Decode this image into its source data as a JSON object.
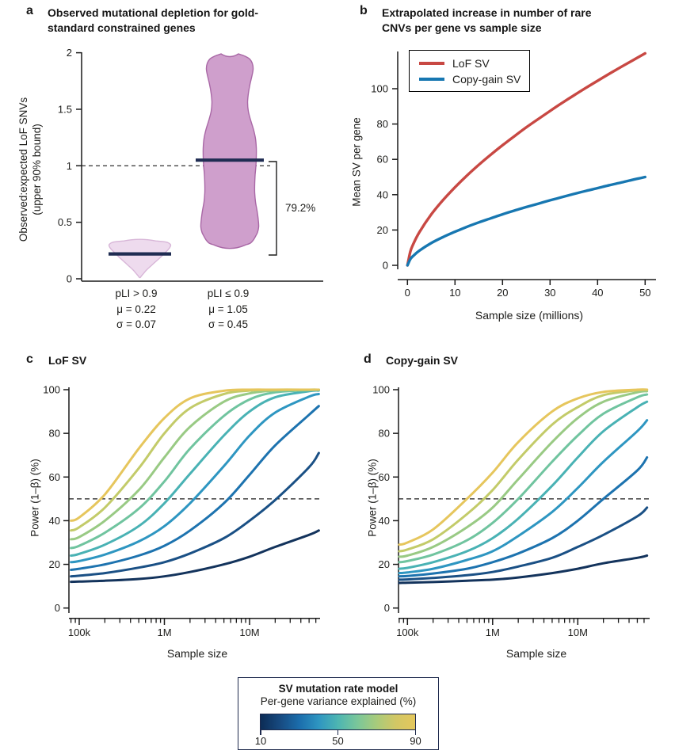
{
  "chart_data": [
    {
      "panel_letter": "a",
      "type": "violin",
      "title": "Observed mutational depletion for gold-standard constrained genes",
      "title_lines": [
        "Observed mutational depletion for gold-",
        "standard constrained genes"
      ],
      "ylabel_lines": [
        "Observed:expected LoF SNVs",
        "(upper 90% bound)"
      ],
      "ylim": [
        0,
        2
      ],
      "y_ticks": [
        "0",
        "0.5",
        "1",
        "1.5",
        "2"
      ],
      "y_tick_values": [
        0,
        0.5,
        1,
        1.5,
        2
      ],
      "reference_line_y": 1,
      "annotation": "79.2%",
      "median_color": "#1f2c52",
      "groups": [
        {
          "label": "pLI > 0.9",
          "mu_label": "μ = 0.22",
          "sigma_label": "σ = 0.07",
          "median": 0.22,
          "fill": "#eedbee",
          "stroke": "#d8b6d8",
          "median_half_len": 39.5,
          "profile": [
            [
              0.335,
              20
            ],
            [
              0.325,
              33
            ],
            [
              0.305,
              38.5
            ],
            [
              0.285,
              38.5
            ],
            [
              0.26,
              36
            ],
            [
              0.225,
              31
            ],
            [
              0.19,
              26
            ],
            [
              0.155,
              20.5
            ],
            [
              0.12,
              15
            ],
            [
              0.085,
              9.5
            ],
            [
              0.05,
              5
            ],
            [
              0.02,
              1.5
            ]
          ]
        },
        {
          "label": "pLI ≤ 0.9",
          "mu_label": "μ = 1.05",
          "sigma_label": "σ = 0.45",
          "median": 1.05,
          "fill": "#cf9fcc",
          "stroke": "#a968a6",
          "median_half_len": 43,
          "profile": [
            [
              1.99,
              11
            ],
            [
              1.97,
              19
            ],
            [
              1.945,
              25
            ],
            [
              1.905,
              28.5
            ],
            [
              1.855,
              29.5
            ],
            [
              1.795,
              28
            ],
            [
              1.72,
              25.5
            ],
            [
              1.64,
              23.5
            ],
            [
              1.56,
              22.5
            ],
            [
              1.48,
              23.5
            ],
            [
              1.4,
              26.5
            ],
            [
              1.32,
              30
            ],
            [
              1.24,
              32.5
            ],
            [
              1.16,
              33.5
            ],
            [
              1.08,
              33.5
            ],
            [
              1.0,
              33
            ],
            [
              0.92,
              32
            ],
            [
              0.84,
              31.5
            ],
            [
              0.76,
              31.5
            ],
            [
              0.68,
              32.5
            ],
            [
              0.6,
              34.5
            ],
            [
              0.52,
              36
            ],
            [
              0.46,
              36.5
            ],
            [
              0.41,
              35
            ],
            [
              0.375,
              32.5
            ],
            [
              0.345,
              30
            ],
            [
              0.315,
              26
            ],
            [
              0.3,
              20
            ]
          ]
        }
      ]
    },
    {
      "panel_letter": "b",
      "type": "line",
      "title": "Extrapolated increase in number of rare CNVs per gene vs sample size",
      "title_lines": [
        "Extrapolated increase in number of rare",
        "CNVs per gene vs sample size"
      ],
      "xlabel": "Sample size (millions)",
      "ylabel": "Mean SV per gene",
      "x_ticks": [
        0,
        10,
        20,
        30,
        40,
        50
      ],
      "y_ticks": [
        0,
        20,
        40,
        60,
        80,
        100
      ],
      "xlim": [
        0,
        52
      ],
      "ylim": [
        0,
        120
      ],
      "legend_position": "upper left",
      "x": [
        0,
        0.6,
        1.2,
        2.5,
        5,
        7.5,
        10,
        12.5,
        15,
        17.5,
        20,
        22.5,
        25,
        27.5,
        30,
        32.5,
        35,
        37.5,
        40,
        42.5,
        45,
        47.5,
        50
      ],
      "series": [
        {
          "name": "LoF SV",
          "color": "#c84843",
          "values": [
            0,
            7.7,
            11.9,
            18.7,
            28.8,
            37.0,
            44.2,
            50.8,
            56.9,
            62.6,
            68.0,
            73.1,
            78.1,
            82.8,
            87.4,
            91.9,
            96.2,
            100.4,
            104.5,
            108.5,
            112.4,
            116.2,
            120
          ]
        },
        {
          "name": "Copy-gain SV",
          "color": "#1777b1",
          "values": [
            0,
            3.5,
            5.3,
            8.3,
            12.6,
            16.0,
            19.0,
            21.8,
            24.3,
            26.6,
            28.9,
            31.0,
            33.0,
            34.9,
            36.8,
            38.6,
            40.4,
            42.1,
            43.7,
            45.4,
            46.9,
            48.5,
            50.0
          ]
        }
      ]
    },
    {
      "panel_letter": "c",
      "type": "line",
      "title": "LoF SV",
      "xlabel": "Sample size",
      "ylabel": "Power (1–β) (%)",
      "x_scale": "log",
      "reference_line_y": 50,
      "y_ticks": [
        0,
        20,
        40,
        60,
        80,
        100
      ],
      "x_major_ticks": [
        {
          "value": 100000,
          "label": "100k"
        },
        {
          "value": 1000000,
          "label": "1M"
        },
        {
          "value": 10000000,
          "label": "10M"
        }
      ],
      "x": [
        80000,
        100000,
        200000,
        500000,
        1000000,
        2000000,
        5000000,
        10000000,
        20000000,
        50000000,
        65000000
      ],
      "series": [
        {
          "name": "10",
          "color": "#13335c",
          "values": [
            12,
            12.1,
            12.5,
            13.3,
            14.5,
            16.5,
            20,
            23.5,
            28,
            33.5,
            35.5
          ]
        },
        {
          "name": "20",
          "color": "#1a5085",
          "values": [
            14.5,
            14.8,
            16,
            18.5,
            21,
            25,
            32,
            40,
            49.5,
            64.5,
            71
          ]
        },
        {
          "name": "30",
          "color": "#1d73af",
          "values": [
            17.5,
            18,
            20,
            24,
            28.5,
            35.5,
            48,
            61,
            74.5,
            88.5,
            92.5
          ]
        },
        {
          "name": "40",
          "color": "#2e96c1",
          "values": [
            21,
            21.5,
            24.5,
            30.5,
            37.5,
            48,
            65,
            79,
            89.5,
            96.8,
            98
          ]
        },
        {
          "name": "50",
          "color": "#49b2b4",
          "values": [
            24,
            24.8,
            29,
            37.5,
            48,
            61.5,
            79,
            90,
            96.5,
            99.3,
            99.6
          ]
        },
        {
          "name": "60",
          "color": "#70c49f",
          "values": [
            27.5,
            28.5,
            34.5,
            45.5,
            58,
            73,
            88,
            95.5,
            98.8,
            99.8,
            100
          ]
        },
        {
          "name": "70",
          "color": "#99ca84",
          "values": [
            31.5,
            32.5,
            40,
            54,
            69,
            83,
            94.5,
            98.3,
            99.6,
            100,
            100
          ]
        },
        {
          "name": "80",
          "color": "#c3cb69",
          "values": [
            35.5,
            37,
            46,
            64,
            80,
            91.5,
            98,
            99.6,
            100,
            100,
            100
          ]
        },
        {
          "name": "90",
          "color": "#e6c65d",
          "values": [
            40,
            41.5,
            52,
            73,
            87,
            96,
            99.5,
            100,
            100,
            100,
            100
          ]
        }
      ]
    },
    {
      "panel_letter": "d",
      "type": "line",
      "title": "Copy-gain SV",
      "xlabel": "Sample size",
      "ylabel": "Power (1–β) (%)",
      "x_scale": "log",
      "reference_line_y": 50,
      "y_ticks": [
        0,
        20,
        40,
        60,
        80,
        100
      ],
      "x_major_ticks": [
        {
          "value": 100000,
          "label": "100k"
        },
        {
          "value": 1000000,
          "label": "1M"
        },
        {
          "value": 10000000,
          "label": "10M"
        }
      ],
      "x": [
        80000,
        100000,
        200000,
        500000,
        1000000,
        2000000,
        5000000,
        10000000,
        20000000,
        50000000,
        65000000
      ],
      "series": [
        {
          "name": "10",
          "color": "#13335c",
          "values": [
            11.5,
            11.6,
            11.9,
            12.5,
            13,
            14,
            16,
            18,
            20.5,
            23,
            24
          ]
        },
        {
          "name": "20",
          "color": "#1a5085",
          "values": [
            13,
            13.1,
            13.8,
            15,
            16.5,
            19,
            23,
            28,
            33.5,
            42,
            46
          ]
        },
        {
          "name": "30",
          "color": "#1d73af",
          "values": [
            14.5,
            14.7,
            15.8,
            18,
            21,
            25,
            32,
            40,
            50,
            63,
            69
          ]
        },
        {
          "name": "40",
          "color": "#2e96c1",
          "values": [
            16,
            16.3,
            18,
            22,
            26,
            33,
            44,
            55,
            67,
            81,
            86
          ]
        },
        {
          "name": "50",
          "color": "#49b2b4",
          "values": [
            18,
            18.4,
            21,
            26,
            32,
            41,
            56,
            69,
            81,
            92,
            94.5
          ]
        },
        {
          "name": "60",
          "color": "#70c49f",
          "values": [
            21,
            21.5,
            24.5,
            31,
            39,
            50,
            67,
            79,
            89,
            96.5,
            97.8
          ]
        },
        {
          "name": "70",
          "color": "#99ca84",
          "values": [
            23.5,
            24,
            28,
            37,
            46,
            59,
            76,
            87,
            94.5,
            98.8,
            99.3
          ]
        },
        {
          "name": "80",
          "color": "#c3cb69",
          "values": [
            26,
            26.8,
            31.5,
            43,
            54,
            68,
            84,
            92,
            97.5,
            99.7,
            100
          ]
        },
        {
          "name": "90",
          "color": "#e6c65d",
          "values": [
            29,
            30,
            36,
            50,
            62,
            76,
            90,
            96,
            99,
            100,
            100
          ]
        }
      ]
    }
  ],
  "colorbar": {
    "title": "SV mutation rate model",
    "subtitle": "Per-gene variance explained (%)",
    "tick_labels": [
      "10",
      "50",
      "90"
    ],
    "gradient": [
      "#0c2c55",
      "#174a80",
      "#1b6dac",
      "#2e95c1",
      "#4db5b2",
      "#7ac79a",
      "#a8cb7b",
      "#d2c765",
      "#e4c75c"
    ]
  }
}
